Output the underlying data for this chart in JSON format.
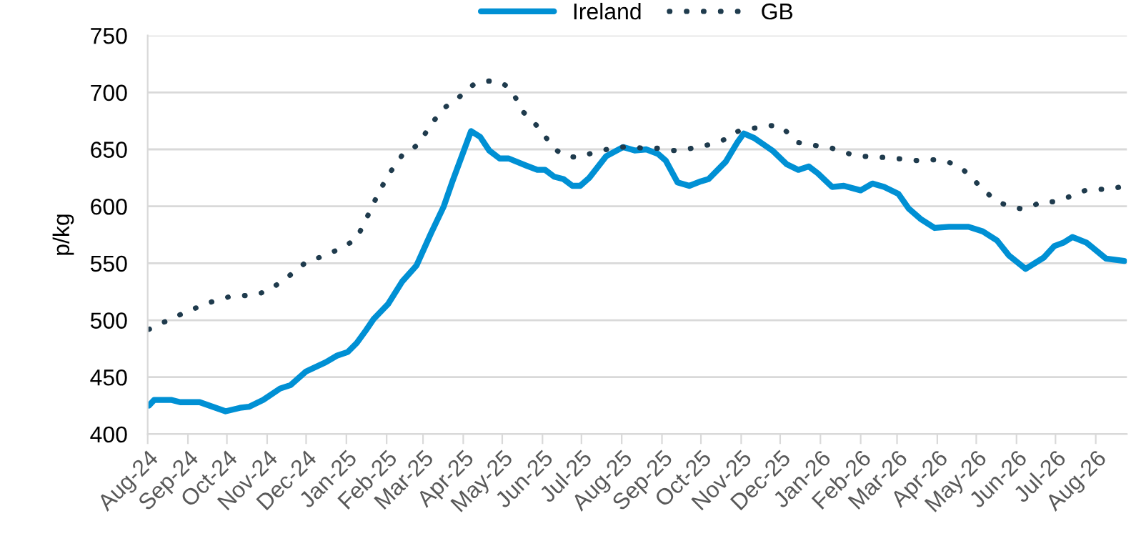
{
  "chart_data": {
    "type": "line",
    "ylabel": "p/kg",
    "ylim": [
      400,
      750
    ],
    "yticks": [
      400,
      450,
      500,
      550,
      600,
      650,
      700,
      750
    ],
    "xlim": [
      "2024-08-01",
      "2026-08-25"
    ],
    "xticks": [
      {
        "value": "2024-08-01",
        "label": "Aug-24"
      },
      {
        "value": "2024-09-01",
        "label": "Sep-24"
      },
      {
        "value": "2024-10-01",
        "label": "Oct-24"
      },
      {
        "value": "2024-11-01",
        "label": "Nov-24"
      },
      {
        "value": "2024-12-01",
        "label": "Dec-24"
      },
      {
        "value": "2025-01-01",
        "label": "Jan-25"
      },
      {
        "value": "2025-02-01",
        "label": "Feb-25"
      },
      {
        "value": "2025-03-01",
        "label": "Mar-25"
      },
      {
        "value": "2025-04-01",
        "label": "Apr-25"
      },
      {
        "value": "2025-05-01",
        "label": "May-25"
      },
      {
        "value": "2025-06-01",
        "label": "Jun-25"
      },
      {
        "value": "2025-07-01",
        "label": "Jul-25"
      },
      {
        "value": "2025-08-01",
        "label": "Aug-25"
      },
      {
        "value": "2025-09-01",
        "label": "Sep-25"
      },
      {
        "value": "2025-10-01",
        "label": "Oct-25"
      },
      {
        "value": "2025-11-01",
        "label": "Nov-25"
      },
      {
        "value": "2025-12-01",
        "label": "Dec-25"
      },
      {
        "value": "2026-01-01",
        "label": "Jan-26"
      },
      {
        "value": "2026-02-01",
        "label": "Feb-26"
      },
      {
        "value": "2026-03-01",
        "label": "Mar-26"
      },
      {
        "value": "2026-04-01",
        "label": "Apr-26"
      },
      {
        "value": "2026-05-01",
        "label": "May-26"
      },
      {
        "value": "2026-06-01",
        "label": "Jun-26"
      },
      {
        "value": "2026-07-01",
        "label": "Jul-26"
      },
      {
        "value": "2026-08-01",
        "label": "Aug-26"
      }
    ],
    "grid": "y",
    "legend": "top",
    "marker": "none",
    "series": [
      {
        "name": "Ireland",
        "color": "#0090d4",
        "line_style": "solid",
        "x": [
          "2024-08-02",
          "2024-08-06",
          "2024-08-19",
          "2024-08-26",
          "2024-09-10",
          "2024-09-30",
          "2024-10-11",
          "2024-10-18",
          "2024-10-29",
          "2024-11-11",
          "2024-11-19",
          "2024-12-01",
          "2024-12-16",
          "2024-12-25",
          "2025-01-02",
          "2025-01-09",
          "2025-01-16",
          "2025-01-22",
          "2025-02-02",
          "2025-02-13",
          "2025-02-24",
          "2025-03-07",
          "2025-03-17",
          "2025-03-24",
          "2025-04-07",
          "2025-04-14",
          "2025-04-21",
          "2025-04-29",
          "2025-05-06",
          "2025-05-19",
          "2025-05-28",
          "2025-06-03",
          "2025-06-10",
          "2025-06-17",
          "2025-06-24",
          "2025-06-30",
          "2025-07-07",
          "2025-07-20",
          "2025-08-02",
          "2025-08-11",
          "2025-08-20",
          "2025-08-29",
          "2025-09-04",
          "2025-09-13",
          "2025-09-22",
          "2025-10-01",
          "2025-10-07",
          "2025-10-20",
          "2025-10-29",
          "2025-11-03",
          "2025-11-11",
          "2025-11-25",
          "2025-12-06",
          "2025-12-15",
          "2025-12-23",
          "2025-12-30",
          "2026-01-10",
          "2026-01-19",
          "2026-02-01",
          "2026-02-10",
          "2026-02-19",
          "2026-03-02",
          "2026-03-10",
          "2026-03-19",
          "2026-03-30",
          "2026-04-10",
          "2026-04-25",
          "2026-05-06",
          "2026-05-17",
          "2026-05-26",
          "2026-06-08",
          "2026-06-22",
          "2026-06-30",
          "2026-07-07",
          "2026-07-14",
          "2026-07-25",
          "2026-08-09",
          "2026-08-23"
        ],
        "values": [
          425,
          430,
          430,
          428,
          428,
          420,
          423,
          424,
          430,
          440,
          443,
          455,
          463,
          469,
          472,
          480,
          491,
          501,
          514,
          534,
          548,
          576,
          600,
          623,
          666,
          661,
          649,
          642,
          642,
          636,
          632,
          632,
          626,
          624,
          618,
          618,
          625,
          644,
          652,
          649,
          650,
          646,
          640,
          621,
          618,
          622,
          624,
          639,
          656,
          664,
          660,
          649,
          637,
          632,
          635,
          629,
          617,
          618,
          614,
          620,
          617,
          611,
          598,
          589,
          581,
          582,
          582,
          578,
          570,
          557,
          545,
          555,
          565,
          568,
          573,
          568,
          554,
          552
        ]
      },
      {
        "name": "GB",
        "color": "#1f3b4d",
        "line_style": "dotted",
        "x": [
          "2024-08-02",
          "2024-08-15",
          "2024-09-01",
          "2024-09-19",
          "2024-10-04",
          "2024-10-22",
          "2024-11-02",
          "2024-11-17",
          "2024-12-01",
          "2024-12-16",
          "2024-12-31",
          "2025-01-09",
          "2025-01-18",
          "2025-01-25",
          "2025-02-02",
          "2025-02-13",
          "2025-02-19",
          "2025-02-26",
          "2025-03-07",
          "2025-03-18",
          "2025-03-26",
          "2025-04-02",
          "2025-04-09",
          "2025-04-17",
          "2025-04-27",
          "2025-05-04",
          "2025-05-10",
          "2025-05-17",
          "2025-05-26",
          "2025-06-06",
          "2025-06-12",
          "2025-06-19",
          "2025-06-28",
          "2025-07-07",
          "2025-07-24",
          "2025-08-02",
          "2025-08-20",
          "2025-08-29",
          "2025-09-06",
          "2025-09-15",
          "2025-09-24",
          "2025-10-11",
          "2025-10-20",
          "2025-10-27",
          "2025-11-05",
          "2025-11-14",
          "2025-11-22",
          "2025-12-02",
          "2025-12-09",
          "2025-12-15",
          "2025-12-30",
          "2026-01-07",
          "2026-01-16",
          "2026-01-26",
          "2026-02-11",
          "2026-02-20",
          "2026-03-09",
          "2026-03-18",
          "2026-03-27",
          "2026-04-06",
          "2026-04-14",
          "2026-04-21",
          "2026-04-28",
          "2026-05-04",
          "2026-05-11",
          "2026-05-18",
          "2026-05-26",
          "2026-06-04",
          "2026-06-13",
          "2026-06-20",
          "2026-06-30",
          "2026-07-08",
          "2026-07-16",
          "2026-07-24",
          "2026-08-01",
          "2026-08-11",
          "2026-08-20"
        ],
        "values": [
          492,
          499,
          508,
          516,
          521,
          522,
          526,
          538,
          551,
          557,
          565,
          572,
          593,
          610,
          627,
          645,
          649,
          655,
          672,
          687,
          693,
          700,
          707,
          710,
          710,
          706,
          698,
          683,
          673,
          657,
          649,
          644,
          643,
          646,
          651,
          652,
          651,
          651,
          649,
          649,
          651,
          655,
          659,
          665,
          668,
          669,
          671,
          670,
          662,
          656,
          653,
          652,
          649,
          645,
          643,
          643,
          641,
          640,
          641,
          640,
          637,
          632,
          625,
          617,
          610,
          604,
          600,
          598,
          600,
          604,
          604,
          607,
          610,
          614,
          615,
          615,
          617
        ]
      }
    ]
  }
}
